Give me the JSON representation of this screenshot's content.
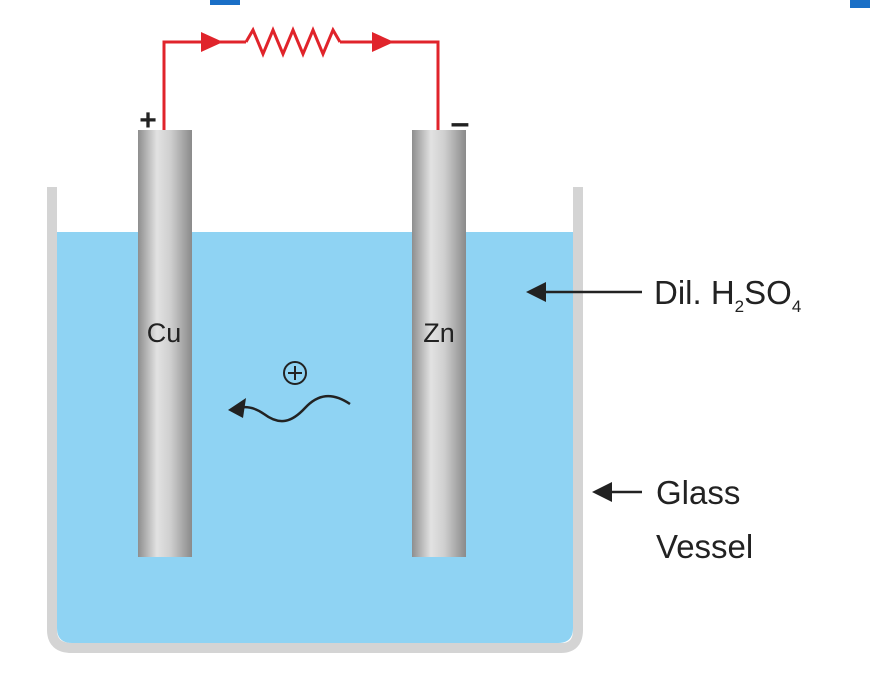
{
  "diagram": {
    "electrodes": {
      "copper": {
        "label": "Cu",
        "terminal": "+"
      },
      "zinc": {
        "label": "Zn",
        "terminal": "–"
      }
    },
    "ion_symbol": "⊕",
    "labels": {
      "electrolyte_prefix": "Dil. H",
      "electrolyte_sub1": "2",
      "electrolyte_mid": "SO",
      "electrolyte_sub2": "4",
      "vessel_line1": "Glass",
      "vessel_line2": "Vessel"
    },
    "colors": {
      "solution": "#8fd3f3",
      "wire": "#e0242b",
      "rod": "#c9c9c9",
      "vessel_wall": "#d4d4d4",
      "text": "#222222"
    }
  }
}
